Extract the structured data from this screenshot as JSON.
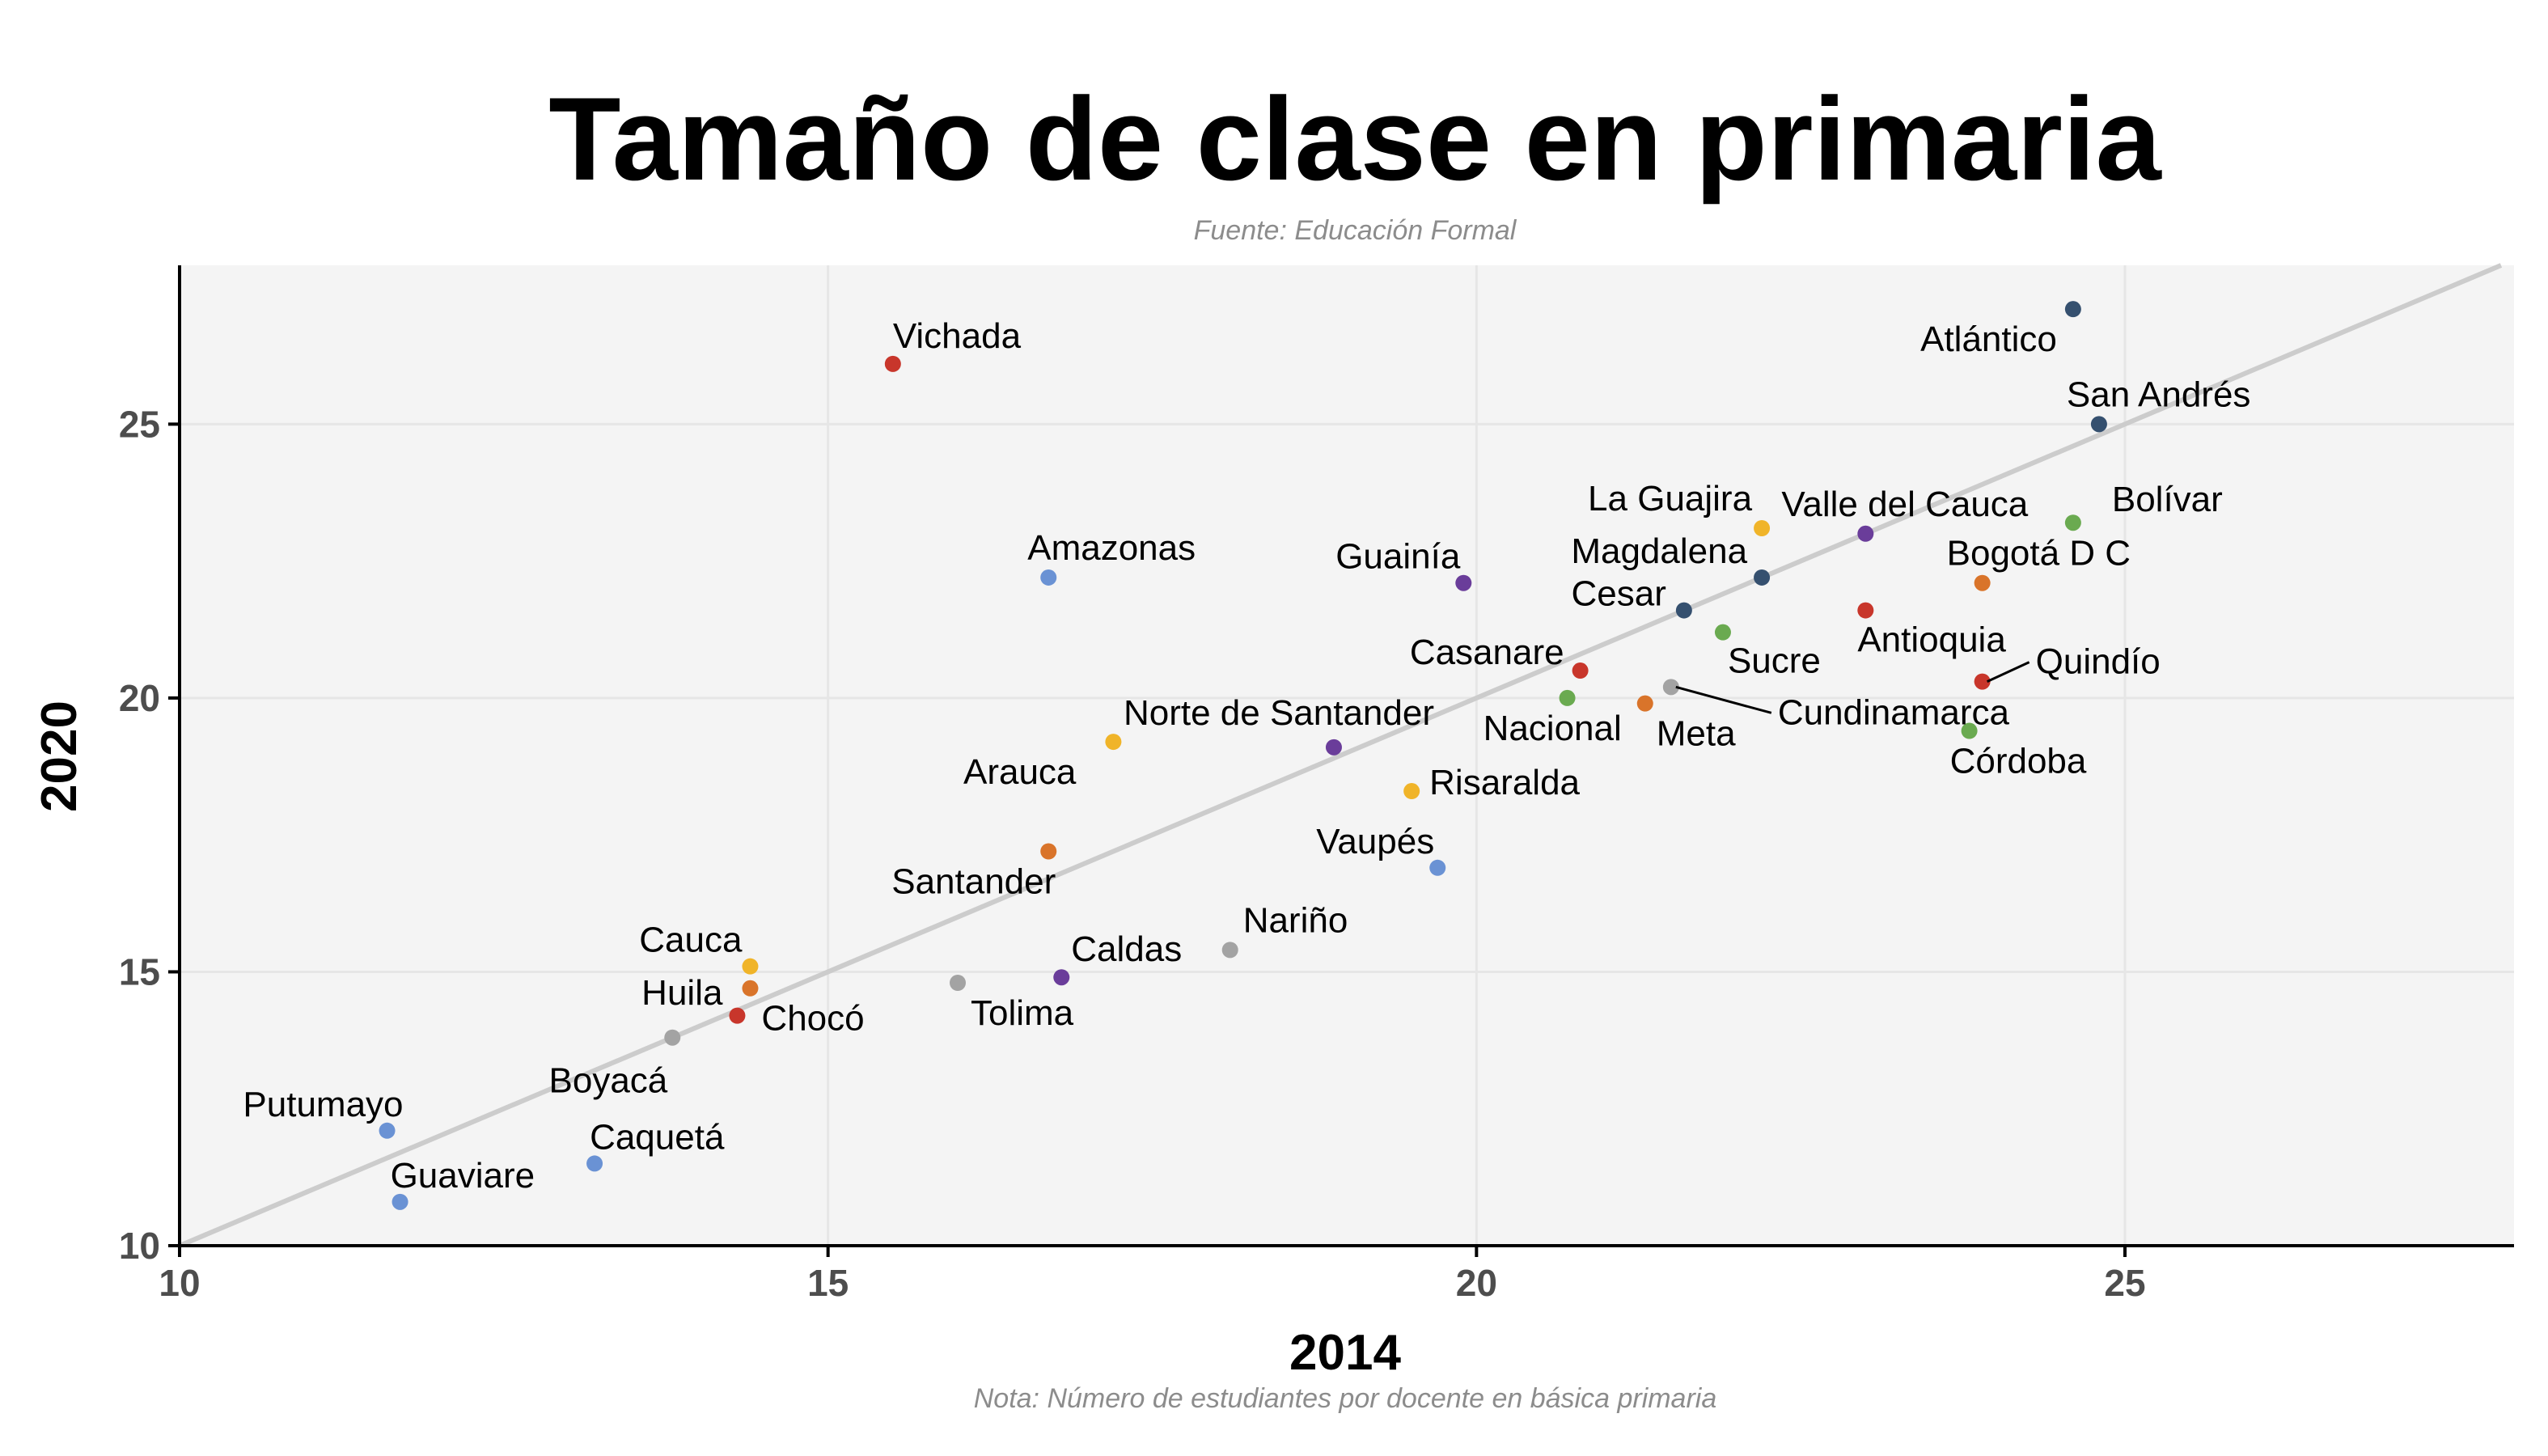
{
  "chart_data": {
    "type": "scatter",
    "title": "Tamaño de clase en primaria",
    "subtitle": "Fuente: Educación Formal",
    "caption": "Nota: Número de estudiantes por docente en básica primaria",
    "xlabel": "2014",
    "ylabel": "2020",
    "xlim": [
      10,
      28
    ],
    "ylim": [
      10,
      27.9
    ],
    "x_ticks": [
      10,
      15,
      20,
      25
    ],
    "y_ticks": [
      10,
      15,
      20,
      25
    ],
    "grid": true,
    "reference_line": "y = x",
    "legend": "none",
    "colors": {
      "panel_background": "#f4f4f4",
      "grid": "#e6e6e6",
      "reference_line": "#cccccc",
      "axis": "#000000"
    },
    "points": [
      {
        "name": "Vichada",
        "x": 15.5,
        "y": 26.1,
        "color": "#c8362b"
      },
      {
        "name": "Atlántico",
        "x": 24.6,
        "y": 27.1,
        "color": "#35506f"
      },
      {
        "name": "San Andrés",
        "x": 24.8,
        "y": 25.0,
        "color": "#35506f"
      },
      {
        "name": "La Guajira",
        "x": 22.2,
        "y": 23.1,
        "color": "#f0b429"
      },
      {
        "name": "Valle del Cauca",
        "x": 23.0,
        "y": 23.0,
        "color": "#6a3d9a"
      },
      {
        "name": "Bolívar",
        "x": 24.6,
        "y": 23.2,
        "color": "#6aaa50"
      },
      {
        "name": "Magdalena",
        "x": 22.2,
        "y": 22.2,
        "color": "#35506f"
      },
      {
        "name": "Bogotá D C",
        "x": 23.9,
        "y": 22.1,
        "color": "#d9742a"
      },
      {
        "name": "Amazonas",
        "x": 16.7,
        "y": 22.2,
        "color": "#6a92d4"
      },
      {
        "name": "Guainía",
        "x": 19.9,
        "y": 22.1,
        "color": "#6a3d9a"
      },
      {
        "name": "Cesar",
        "x": 21.6,
        "y": 21.6,
        "color": "#35506f"
      },
      {
        "name": "Antioquia",
        "x": 23.0,
        "y": 21.6,
        "color": "#c8362b"
      },
      {
        "name": "Sucre",
        "x": 21.9,
        "y": 21.2,
        "color": "#6aaa50"
      },
      {
        "name": "Casanare",
        "x": 20.8,
        "y": 20.5,
        "color": "#c8362b"
      },
      {
        "name": "Quindío",
        "x": 23.9,
        "y": 20.3,
        "color": "#c8362b"
      },
      {
        "name": "Cundinamarca",
        "x": 21.5,
        "y": 20.2,
        "color": "#a3a3a3"
      },
      {
        "name": "Nacional",
        "x": 20.7,
        "y": 20.0,
        "color": "#6aaa50"
      },
      {
        "name": "Meta",
        "x": 21.3,
        "y": 19.9,
        "color": "#d9742a"
      },
      {
        "name": "Córdoba",
        "x": 23.8,
        "y": 19.4,
        "color": "#6aaa50"
      },
      {
        "name": "Norte de Santander",
        "x": 18.9,
        "y": 19.1,
        "color": "#6a3d9a"
      },
      {
        "name": "Arauca",
        "x": 17.2,
        "y": 19.2,
        "color": "#f0b429"
      },
      {
        "name": "Risaralda",
        "x": 19.5,
        "y": 18.3,
        "color": "#f0b429"
      },
      {
        "name": "Santander",
        "x": 16.7,
        "y": 17.2,
        "color": "#d9742a"
      },
      {
        "name": "Vaupés",
        "x": 19.7,
        "y": 16.9,
        "color": "#6a92d4"
      },
      {
        "name": "Nariño",
        "x": 18.1,
        "y": 15.4,
        "color": "#a3a3a3"
      },
      {
        "name": "Caldas",
        "x": 16.8,
        "y": 14.9,
        "color": "#6a3d9a"
      },
      {
        "name": "Tolima",
        "x": 16.0,
        "y": 14.8,
        "color": "#a3a3a3"
      },
      {
        "name": "Cauca",
        "x": 14.4,
        "y": 15.1,
        "color": "#f0b429"
      },
      {
        "name": "Huila",
        "x": 14.4,
        "y": 14.7,
        "color": "#d9742a"
      },
      {
        "name": "Chocó",
        "x": 14.3,
        "y": 14.2,
        "color": "#c8362b"
      },
      {
        "name": "Boyacá",
        "x": 13.8,
        "y": 13.8,
        "color": "#a3a3a3"
      },
      {
        "name": "Putumayo",
        "x": 11.6,
        "y": 12.1,
        "color": "#6a92d4"
      },
      {
        "name": "Caquetá",
        "x": 13.2,
        "y": 11.5,
        "color": "#6a92d4"
      },
      {
        "name": "Guaviare",
        "x": 11.7,
        "y": 10.8,
        "color": "#6a92d4"
      }
    ]
  }
}
